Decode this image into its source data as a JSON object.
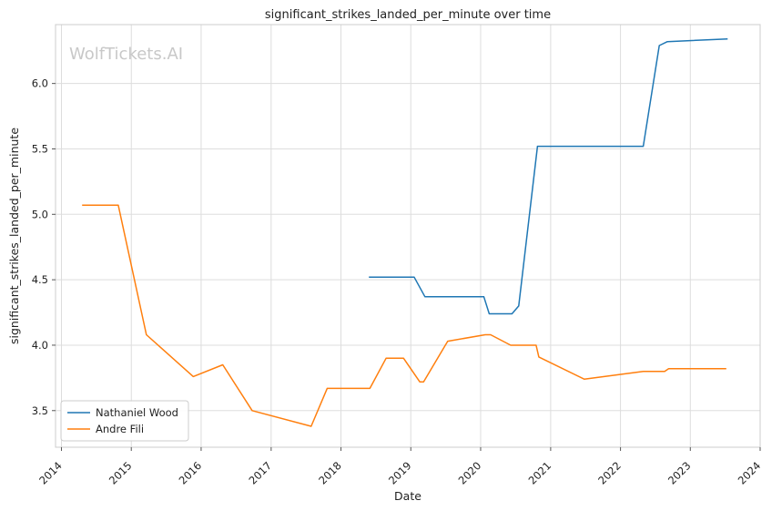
{
  "chart_data": {
    "type": "line",
    "title": "significant_strikes_landed_per_minute over time",
    "xlabel": "Date",
    "ylabel": "significant_strikes_landed_per_minute",
    "watermark": "WolfTickets.AI",
    "xlim": [
      "2013-12-01",
      "2024-01-01"
    ],
    "ylim": [
      3.22,
      6.45
    ],
    "x_ticks": [
      "2014",
      "2015",
      "2016",
      "2017",
      "2018",
      "2019",
      "2020",
      "2021",
      "2022",
      "2023",
      "2024"
    ],
    "y_ticks": [
      "3.5",
      "4.0",
      "4.5",
      "5.0",
      "5.5",
      "6.0"
    ],
    "grid": true,
    "legend_position": "lower-left",
    "series": [
      {
        "name": "Nathaniel Wood",
        "color": "#1f77b4",
        "points": [
          [
            "2018-05-27",
            4.52
          ],
          [
            "2019-01-19",
            4.52
          ],
          [
            "2019-03-16",
            4.37
          ],
          [
            "2020-01-18",
            4.37
          ],
          [
            "2020-02-15",
            4.24
          ],
          [
            "2020-06-13",
            4.24
          ],
          [
            "2020-07-18",
            4.3
          ],
          [
            "2020-10-24",
            5.52
          ],
          [
            "2022-04-30",
            5.52
          ],
          [
            "2022-07-23",
            6.29
          ],
          [
            "2022-09-03",
            6.32
          ],
          [
            "2023-07-15",
            6.34
          ]
        ]
      },
      {
        "name": "Andre Fili",
        "color": "#ff7f0e",
        "points": [
          [
            "2014-04-19",
            5.07
          ],
          [
            "2014-10-25",
            5.07
          ],
          [
            "2015-03-21",
            4.08
          ],
          [
            "2015-11-21",
            3.76
          ],
          [
            "2016-04-23",
            3.85
          ],
          [
            "2016-09-24",
            3.5
          ],
          [
            "2017-07-29",
            3.38
          ],
          [
            "2017-10-21",
            3.67
          ],
          [
            "2018-06-01",
            3.67
          ],
          [
            "2018-08-25",
            3.9
          ],
          [
            "2018-11-24",
            3.9
          ],
          [
            "2019-02-17",
            3.72
          ],
          [
            "2019-03-09",
            3.72
          ],
          [
            "2019-07-13",
            4.03
          ],
          [
            "2020-01-25",
            4.08
          ],
          [
            "2020-02-22",
            4.08
          ],
          [
            "2020-06-06",
            4.0
          ],
          [
            "2020-10-17",
            4.0
          ],
          [
            "2020-10-31",
            3.91
          ],
          [
            "2021-06-26",
            3.74
          ],
          [
            "2022-04-30",
            3.8
          ],
          [
            "2022-08-20",
            3.8
          ],
          [
            "2022-09-10",
            3.82
          ],
          [
            "2023-07-08",
            3.82
          ]
        ]
      }
    ]
  }
}
